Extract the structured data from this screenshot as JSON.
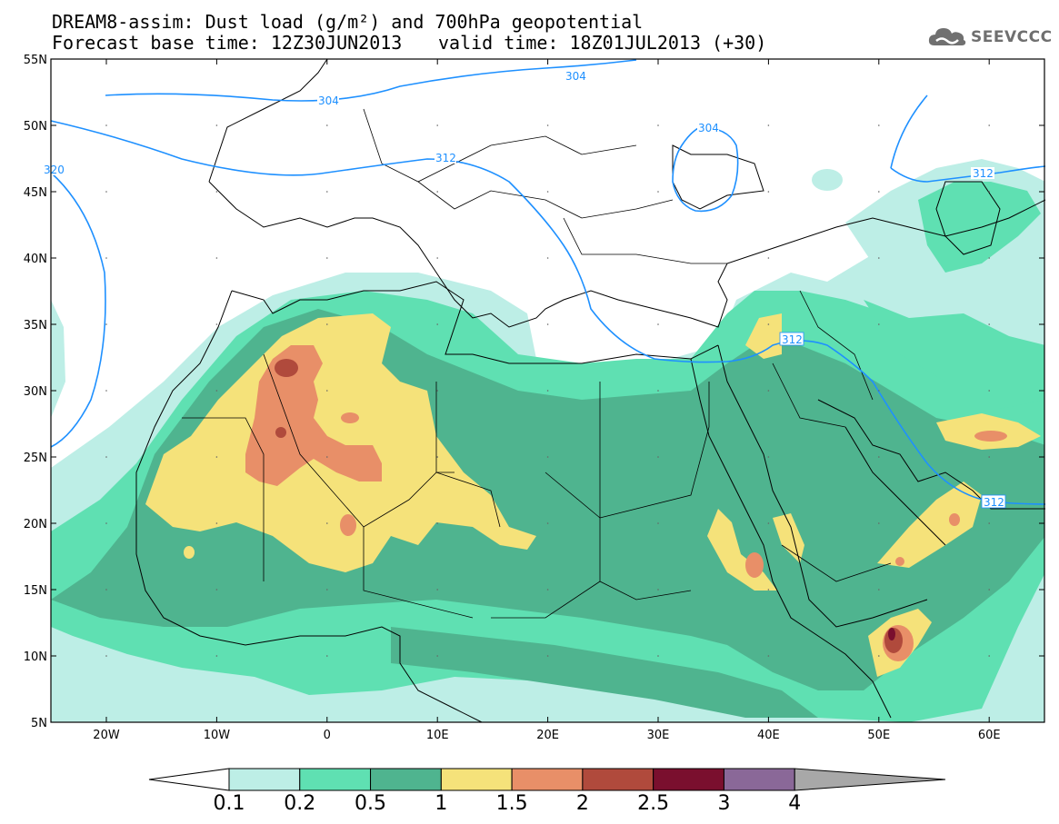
{
  "header": {
    "title_line1": "DREAM8-assim: Dust load (g/m²) and 700hPa geopotential",
    "title_line2a": "Forecast base time: 12Z30JUN2013",
    "title_line2b": "valid time: 18Z01JUL2013 (+30)",
    "logo_text": "SEEVCCC"
  },
  "map": {
    "lat_labels": [
      "55N",
      "50N",
      "45N",
      "40N",
      "35N",
      "30N",
      "25N",
      "20N",
      "15N",
      "10N",
      "5N"
    ],
    "lon_labels": [
      "20W",
      "10W",
      "0",
      "10E",
      "20E",
      "30E",
      "40E",
      "50E",
      "60E"
    ],
    "contour_labels": [
      "304",
      "304",
      "304",
      "312",
      "312",
      "312",
      "312",
      "320"
    ]
  },
  "colorbar": {
    "labels": [
      "0.1",
      "0.2",
      "0.5",
      "1",
      "1.5",
      "2",
      "2.5",
      "3",
      "4"
    ],
    "colors": [
      "#bdeee6",
      "#5fe0b2",
      "#4fb48f",
      "#f5e27a",
      "#e88f68",
      "#b04a3c",
      "#7a0f2e",
      "#8a6898",
      "#a8a8a8"
    ]
  },
  "colors": {
    "contour": "#1e90ff",
    "level1": "#bdeee6",
    "level2": "#5fe0b2",
    "level3": "#4fb48f",
    "level4": "#f5e27a",
    "level5": "#e88f68",
    "level6": "#b04a3c",
    "level7": "#7a0f2e"
  }
}
